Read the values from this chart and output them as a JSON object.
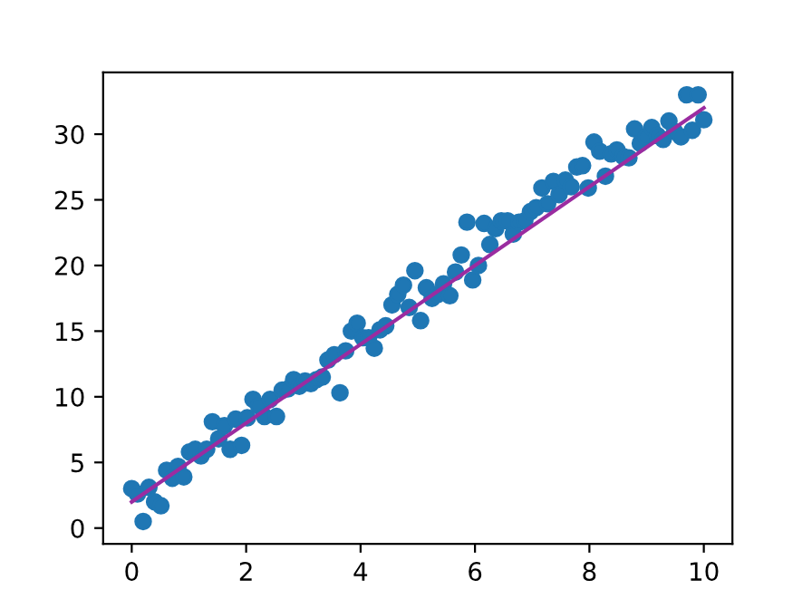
{
  "chart_data": {
    "type": "scatter",
    "xlim": [
      -0.5,
      10.5
    ],
    "xticks": [
      0,
      2,
      4,
      6,
      8,
      10
    ],
    "ylim": [
      -1.2,
      34.7
    ],
    "yticks": [
      0,
      5,
      10,
      15,
      20,
      25,
      30
    ],
    "grid": false,
    "legend": false,
    "series": [
      {
        "marker": "circle",
        "color": "#1f77b4",
        "x": [
          0.0,
          0.1,
          0.2,
          0.3,
          0.4,
          0.51,
          0.61,
          0.71,
          0.81,
          0.91,
          1.01,
          1.11,
          1.21,
          1.31,
          1.41,
          1.52,
          1.62,
          1.72,
          1.82,
          1.92,
          2.02,
          2.12,
          2.22,
          2.32,
          2.42,
          2.53,
          2.63,
          2.73,
          2.83,
          2.93,
          3.03,
          3.13,
          3.23,
          3.33,
          3.43,
          3.54,
          3.64,
          3.74,
          3.84,
          3.94,
          4.04,
          4.14,
          4.24,
          4.34,
          4.44,
          4.55,
          4.65,
          4.75,
          4.85,
          4.95,
          5.05,
          5.15,
          5.25,
          5.35,
          5.45,
          5.56,
          5.66,
          5.76,
          5.86,
          5.96,
          6.06,
          6.16,
          6.26,
          6.36,
          6.46,
          6.57,
          6.67,
          6.77,
          6.87,
          6.97,
          7.07,
          7.17,
          7.27,
          7.37,
          7.47,
          7.58,
          7.68,
          7.78,
          7.88,
          7.98,
          8.08,
          8.18,
          8.28,
          8.38,
          8.48,
          8.59,
          8.69,
          8.79,
          8.89,
          8.99,
          9.09,
          9.19,
          9.29,
          9.39,
          9.49,
          9.6,
          9.7,
          9.8,
          9.9,
          10.0
        ],
        "values": [
          3.0,
          2.6,
          0.5,
          3.1,
          2.0,
          1.7,
          4.4,
          3.8,
          4.7,
          3.9,
          5.8,
          6.0,
          5.5,
          6.0,
          8.1,
          6.8,
          7.8,
          6.0,
          8.3,
          6.3,
          8.4,
          9.8,
          9.3,
          8.5,
          9.8,
          8.5,
          10.5,
          10.6,
          11.3,
          10.8,
          11.2,
          11.0,
          11.3,
          11.5,
          12.8,
          13.2,
          10.3,
          13.5,
          15.0,
          15.6,
          14.5,
          14.5,
          13.7,
          15.1,
          15.4,
          17.0,
          17.8,
          18.5,
          16.8,
          19.6,
          15.8,
          18.3,
          17.5,
          17.8,
          18.6,
          17.7,
          19.5,
          20.8,
          23.3,
          18.9,
          20.0,
          23.2,
          21.6,
          22.8,
          23.4,
          23.4,
          22.4,
          23.3,
          23.4,
          24.1,
          24.4,
          25.9,
          24.7,
          26.4,
          25.4,
          26.5,
          26.0,
          27.5,
          27.6,
          25.9,
          29.4,
          28.7,
          26.8,
          28.5,
          28.8,
          28.3,
          28.2,
          30.4,
          29.3,
          29.8,
          30.5,
          29.9,
          29.6,
          31.0,
          30.2,
          29.8,
          33.0,
          30.3,
          33.0,
          31.1
        ]
      },
      {
        "type": "line",
        "marker": "none",
        "line_style": "solid",
        "color": "#9b2ca0",
        "x": [
          0,
          10
        ],
        "values": [
          2.0,
          32.0
        ]
      }
    ]
  }
}
